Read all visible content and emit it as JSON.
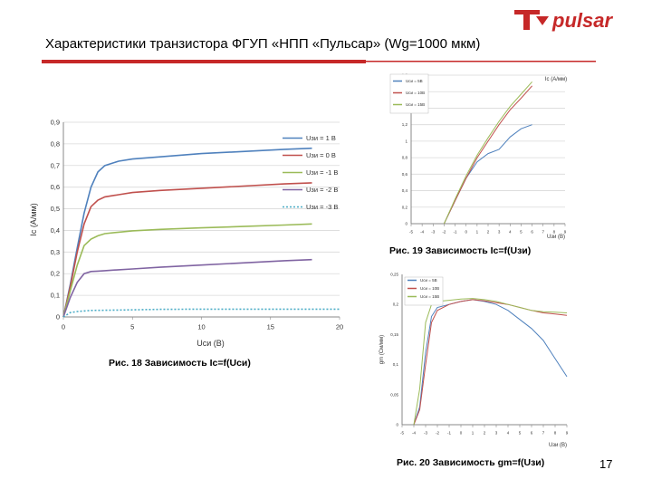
{
  "slide": {
    "title": "Характеристики транзистора ФГУП «НПП «Пульсар» (Wg=1000 мкм)",
    "logo_text": "pulsar",
    "brand_color": "#c62828",
    "caption_fig18": "Рис. 18 Зависимость Iс=f(Uси)",
    "caption_fig19": "Рис. 19 Зависимость Iс=f(Uзи)",
    "caption_fig20": "Рис. 20 Зависимость gm=f(Uзи)",
    "page_number": "17"
  },
  "chart_data": [
    {
      "id": "fig18",
      "type": "line",
      "xlabel": "Uси (В)",
      "ylabel": "Iс (А/мм)",
      "xlim": [
        0,
        20
      ],
      "ylim": [
        0,
        0.9
      ],
      "xticks": [
        "0",
        "5",
        "10",
        "15",
        "20"
      ],
      "yticks": [
        "0",
        "0,1",
        "0,2",
        "0,3",
        "0,4",
        "0,5",
        "0,6",
        "0,7",
        "0,8",
        "0,9"
      ],
      "legend_position": "right",
      "series": [
        {
          "name": "Uзи = 1 В",
          "color": "#4f81bd",
          "dash": "",
          "x": [
            0,
            0.5,
            1,
            1.5,
            2,
            2.5,
            3,
            4,
            5,
            7,
            10,
            13,
            16,
            18
          ],
          "y": [
            0,
            0.15,
            0.32,
            0.48,
            0.6,
            0.67,
            0.7,
            0.72,
            0.73,
            0.74,
            0.755,
            0.765,
            0.775,
            0.78
          ]
        },
        {
          "name": "Uзи = 0 В",
          "color": "#c0504d",
          "dash": "",
          "x": [
            0,
            0.5,
            1,
            1.5,
            2,
            2.5,
            3,
            4,
            5,
            7,
            10,
            13,
            16,
            18
          ],
          "y": [
            0,
            0.14,
            0.3,
            0.43,
            0.51,
            0.54,
            0.555,
            0.565,
            0.575,
            0.585,
            0.595,
            0.605,
            0.615,
            0.62
          ]
        },
        {
          "name": "Uзи = -1 В",
          "color": "#9bbb59",
          "dash": "",
          "x": [
            0,
            0.5,
            1,
            1.5,
            2,
            2.5,
            3,
            4,
            5,
            7,
            10,
            13,
            16,
            18
          ],
          "y": [
            0,
            0.12,
            0.24,
            0.33,
            0.36,
            0.375,
            0.385,
            0.392,
            0.398,
            0.405,
            0.412,
            0.418,
            0.425,
            0.43
          ]
        },
        {
          "name": "Uзи = -2 В",
          "color": "#8064a2",
          "dash": "",
          "x": [
            0,
            0.5,
            1,
            1.5,
            2,
            2.5,
            3,
            4,
            5,
            7,
            10,
            13,
            16,
            18
          ],
          "y": [
            0,
            0.09,
            0.16,
            0.2,
            0.21,
            0.212,
            0.214,
            0.218,
            0.222,
            0.23,
            0.24,
            0.25,
            0.26,
            0.265
          ]
        },
        {
          "name": "Uзи = -3 В",
          "color": "#4bacc6",
          "dash": "2,2",
          "x": [
            0,
            0.5,
            1,
            2,
            4,
            7,
            10,
            14,
            18,
            20
          ],
          "y": [
            0,
            0.02,
            0.025,
            0.03,
            0.032,
            0.035,
            0.036,
            0.036,
            0.036,
            0.036
          ]
        }
      ]
    },
    {
      "id": "fig19",
      "type": "line",
      "xlabel": "Uзи (В)",
      "ylabel": "Ic (А/мм)",
      "xlim": [
        -5,
        9
      ],
      "ylim": [
        0,
        1.8
      ],
      "xticks": [
        "-5",
        "-4",
        "-3",
        "-2",
        "-1",
        "0",
        "1",
        "2",
        "3",
        "4",
        "5",
        "6",
        "7",
        "8",
        "9"
      ],
      "yticks": [
        "0",
        "0,2",
        "0,4",
        "0,6",
        "0,8",
        "1",
        "1,2",
        "1,4",
        "1,6",
        "1,8"
      ],
      "legend_position": "top-left",
      "series": [
        {
          "name": "Uси = 5В",
          "color": "#4f81bd",
          "dash": "",
          "x": [
            -2,
            -1,
            0,
            1,
            2,
            3,
            4,
            5,
            6
          ],
          "y": [
            0,
            0.28,
            0.55,
            0.75,
            0.85,
            0.9,
            1.05,
            1.15,
            1.2
          ]
        },
        {
          "name": "Uси = 10В",
          "color": "#c0504d",
          "dash": "",
          "x": [
            -2,
            -1,
            0,
            1,
            2,
            3,
            4,
            5,
            6
          ],
          "y": [
            0,
            0.28,
            0.55,
            0.8,
            1.0,
            1.2,
            1.38,
            1.52,
            1.67
          ]
        },
        {
          "name": "Uси = 15В",
          "color": "#9bbb59",
          "dash": "",
          "x": [
            -2,
            -1,
            0,
            1,
            2,
            3,
            4,
            5,
            6
          ],
          "y": [
            0,
            0.3,
            0.58,
            0.83,
            1.04,
            1.24,
            1.42,
            1.57,
            1.72
          ]
        }
      ]
    },
    {
      "id": "fig20",
      "type": "line",
      "xlabel": "Uзи (В)",
      "ylabel": "gm (См/мм)",
      "xlim": [
        -5,
        9
      ],
      "ylim": [
        0,
        0.25
      ],
      "xticks": [
        "-5",
        "-4",
        "-3",
        "-2",
        "-1",
        "0",
        "1",
        "2",
        "3",
        "4",
        "5",
        "6",
        "7",
        "8",
        "9"
      ],
      "yticks": [
        "0",
        "0,05",
        "0,1",
        "0,15",
        "0,2",
        "0,25"
      ],
      "legend_position": "top-left",
      "series": [
        {
          "name": "Uси = 5В",
          "color": "#4f81bd",
          "dash": "",
          "x": [
            -4,
            -3.5,
            -3,
            -2.5,
            -2,
            -1,
            0,
            1,
            2,
            3,
            4,
            5,
            6,
            7,
            8,
            9
          ],
          "y": [
            0,
            0.03,
            0.12,
            0.18,
            0.195,
            0.2,
            0.205,
            0.208,
            0.205,
            0.2,
            0.19,
            0.175,
            0.16,
            0.14,
            0.11,
            0.08
          ]
        },
        {
          "name": "Uси = 10В",
          "color": "#c0504d",
          "dash": "",
          "x": [
            -4,
            -3.5,
            -3,
            -2.5,
            -2,
            -1,
            0,
            1,
            2,
            3,
            4,
            5,
            6,
            7,
            8,
            9
          ],
          "y": [
            0,
            0.025,
            0.1,
            0.17,
            0.19,
            0.2,
            0.205,
            0.208,
            0.206,
            0.203,
            0.2,
            0.195,
            0.19,
            0.186,
            0.184,
            0.182
          ]
        },
        {
          "name": "Uси = 15В",
          "color": "#9bbb59",
          "dash": "",
          "x": [
            -4,
            -3.5,
            -3,
            -2.5,
            -2,
            -1,
            0,
            1,
            2,
            3,
            4,
            5,
            6,
            7,
            8,
            9
          ],
          "y": [
            0,
            0.06,
            0.17,
            0.2,
            0.205,
            0.207,
            0.209,
            0.21,
            0.208,
            0.205,
            0.2,
            0.195,
            0.19,
            0.188,
            0.187,
            0.186
          ]
        }
      ]
    }
  ]
}
